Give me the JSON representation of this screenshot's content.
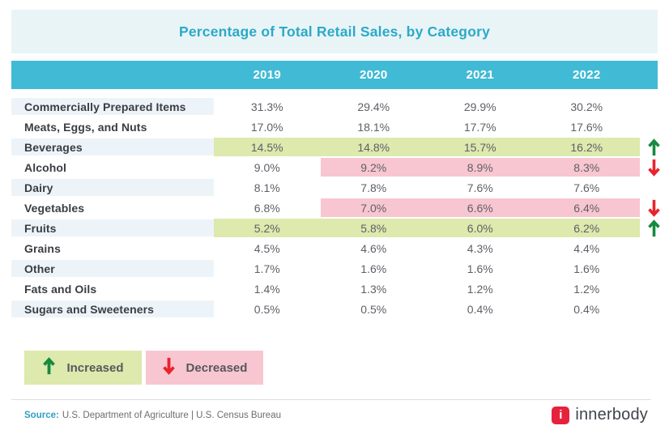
{
  "title": "Percentage of Total Retail Sales, by Category",
  "columns": [
    "2019",
    "2020",
    "2021",
    "2022"
  ],
  "rows": [
    {
      "category": "Commercially Prepared Items",
      "values": [
        "31.3%",
        "29.4%",
        "29.9%",
        "30.2%"
      ],
      "trend": null,
      "highlight_from": null
    },
    {
      "category": "Meats, Eggs, and Nuts",
      "values": [
        "17.0%",
        "18.1%",
        "17.7%",
        "17.6%"
      ],
      "trend": null,
      "highlight_from": null
    },
    {
      "category": "Beverages",
      "values": [
        "14.5%",
        "14.8%",
        "15.7%",
        "16.2%"
      ],
      "trend": "increased",
      "highlight_from": 0
    },
    {
      "category": "Alcohol",
      "values": [
        "9.0%",
        "9.2%",
        "8.9%",
        "8.3%"
      ],
      "trend": "decreased",
      "highlight_from": 1
    },
    {
      "category": "Dairy",
      "values": [
        "8.1%",
        "7.8%",
        "7.6%",
        "7.6%"
      ],
      "trend": null,
      "highlight_from": null
    },
    {
      "category": "Vegetables",
      "values": [
        "6.8%",
        "7.0%",
        "6.6%",
        "6.4%"
      ],
      "trend": "decreased",
      "highlight_from": 1
    },
    {
      "category": "Fruits",
      "values": [
        "5.2%",
        "5.8%",
        "6.0%",
        "6.2%"
      ],
      "trend": "increased",
      "highlight_from": 0
    },
    {
      "category": "Grains",
      "values": [
        "4.5%",
        "4.6%",
        "4.3%",
        "4.4%"
      ],
      "trend": null,
      "highlight_from": null
    },
    {
      "category": "Other",
      "values": [
        "1.7%",
        "1.6%",
        "1.6%",
        "1.6%"
      ],
      "trend": null,
      "highlight_from": null
    },
    {
      "category": "Fats and Oils",
      "values": [
        "1.4%",
        "1.3%",
        "1.2%",
        "1.2%"
      ],
      "trend": null,
      "highlight_from": null
    },
    {
      "category": "Sugars and Sweeteners",
      "values": [
        "0.5%",
        "0.5%",
        "0.4%",
        "0.4%"
      ],
      "trend": null,
      "highlight_from": null
    }
  ],
  "legend": [
    {
      "label": "Increased",
      "type": "increased"
    },
    {
      "label": "Decreased",
      "type": "decreased"
    }
  ],
  "footer": {
    "source_label": "Source:",
    "source_text": "U.S. Department of Agriculture | U.S. Census Bureau",
    "brand": "innerbody",
    "brand_mark": "i"
  },
  "colors": {
    "header_teal": "#41bad5",
    "title_teal": "#2baac8",
    "title_band_bg": "#e9f4f7",
    "alt_row_bg": "#edf4f9",
    "increased_bg": "#dde9ad",
    "decreased_bg": "#f8c6d0",
    "increased_arrow": "#178a3e",
    "decreased_arrow": "#e9242d",
    "brand_red": "#e5233d"
  },
  "chart_data": {
    "type": "table",
    "title": "Percentage of Total Retail Sales, by Category",
    "columns": [
      "2019",
      "2020",
      "2021",
      "2022"
    ],
    "series": [
      {
        "name": "Commercially Prepared Items",
        "values": [
          31.3,
          29.4,
          29.9,
          30.2
        ],
        "trend": null
      },
      {
        "name": "Meats, Eggs, and Nuts",
        "values": [
          17.0,
          18.1,
          17.7,
          17.6
        ],
        "trend": null
      },
      {
        "name": "Beverages",
        "values": [
          14.5,
          14.8,
          15.7,
          16.2
        ],
        "trend": "increased"
      },
      {
        "name": "Alcohol",
        "values": [
          9.0,
          9.2,
          8.9,
          8.3
        ],
        "trend": "decreased"
      },
      {
        "name": "Dairy",
        "values": [
          8.1,
          7.8,
          7.6,
          7.6
        ],
        "trend": null
      },
      {
        "name": "Vegetables",
        "values": [
          6.8,
          7.0,
          6.6,
          6.4
        ],
        "trend": "decreased"
      },
      {
        "name": "Fruits",
        "values": [
          5.2,
          5.8,
          6.0,
          6.2
        ],
        "trend": "increased"
      },
      {
        "name": "Grains",
        "values": [
          4.5,
          4.6,
          4.3,
          4.4
        ],
        "trend": null
      },
      {
        "name": "Other",
        "values": [
          1.7,
          1.6,
          1.6,
          1.6
        ],
        "trend": null
      },
      {
        "name": "Fats and Oils",
        "values": [
          1.4,
          1.3,
          1.2,
          1.2
        ],
        "trend": null
      },
      {
        "name": "Sugars and Sweeteners",
        "values": [
          0.5,
          0.5,
          0.4,
          0.4
        ],
        "trend": null
      }
    ],
    "legend": [
      "Increased",
      "Decreased"
    ],
    "units": "percent"
  }
}
